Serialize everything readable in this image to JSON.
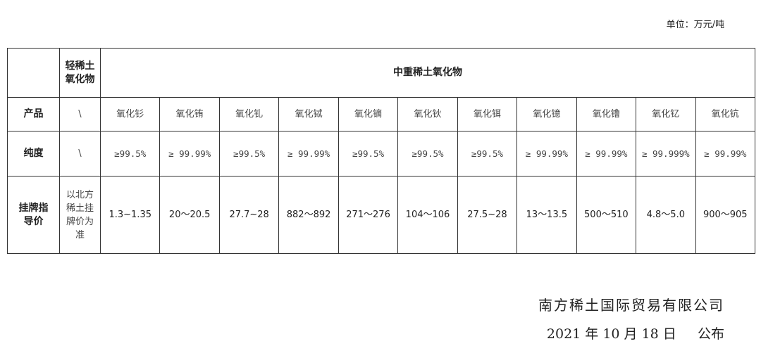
{
  "unit": "单位：万元/吨",
  "header": {
    "light_group": "轻稀土氧化物",
    "heavy_group": "中重稀土氧化物"
  },
  "rows": {
    "product_label": "产品",
    "purity_label": "纯度",
    "price_label": "挂牌指导价"
  },
  "light": {
    "product": "\\",
    "purity": "\\",
    "price": "以北方稀土挂牌价为准"
  },
  "products": [
    {
      "name": "氧化钐",
      "purity": "≥99.5%",
      "price": "1.3~1.35"
    },
    {
      "name": "氧化铕",
      "purity": "≥ 99.99%",
      "price": "20～20.5"
    },
    {
      "name": "氧化钆",
      "purity": "≥99.5%",
      "price": "27.7~28"
    },
    {
      "name": "氧化铽",
      "purity": "≥ 99.99%",
      "price": "882～892"
    },
    {
      "name": "氧化镝",
      "purity": "≥99.5%",
      "price": "271～276"
    },
    {
      "name": "氧化钬",
      "purity": "≥99.5%",
      "price": "104～106"
    },
    {
      "name": "氧化铒",
      "purity": "≥99.5%",
      "price": "27.5~28"
    },
    {
      "name": "氧化镱",
      "purity": "≥ 99.99%",
      "price": "13～13.5"
    },
    {
      "name": "氧化镥",
      "purity": "≥ 99.99%",
      "price": "500～510"
    },
    {
      "name": "氧化钇",
      "purity": "≥ 99.999%",
      "price": "4.8～5.0"
    },
    {
      "name": "氧化钪",
      "purity": "≥ 99.99%",
      "price": "900～905"
    }
  ],
  "footer": {
    "company": "南方稀土国际贸易有限公司",
    "date": "2021 年 10 月 18 日     公布"
  }
}
